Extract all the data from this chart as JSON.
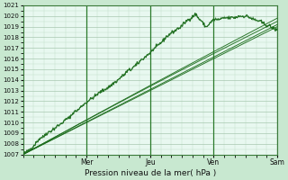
{
  "title": "",
  "xlabel": "Pression niveau de la mer( hPa )",
  "bg_color": "#c8e8d0",
  "plot_bg_color": "#e8f8f0",
  "grid_major_color": "#a8c8b0",
  "grid_minor_color": "#c0ddc8",
  "line_color": "#1a6b1a",
  "vline_color": "#2a7a2a",
  "ylim": [
    1007,
    1021
  ],
  "yticks": [
    1007,
    1008,
    1009,
    1010,
    1011,
    1012,
    1013,
    1014,
    1015,
    1016,
    1017,
    1018,
    1019,
    1020,
    1021
  ],
  "day_labels": [
    "Mer",
    "Jeu",
    "Ven",
    "Sam"
  ],
  "day_positions": [
    0.25,
    0.5,
    0.75,
    1.0
  ],
  "n_points": 400,
  "seed": 42
}
